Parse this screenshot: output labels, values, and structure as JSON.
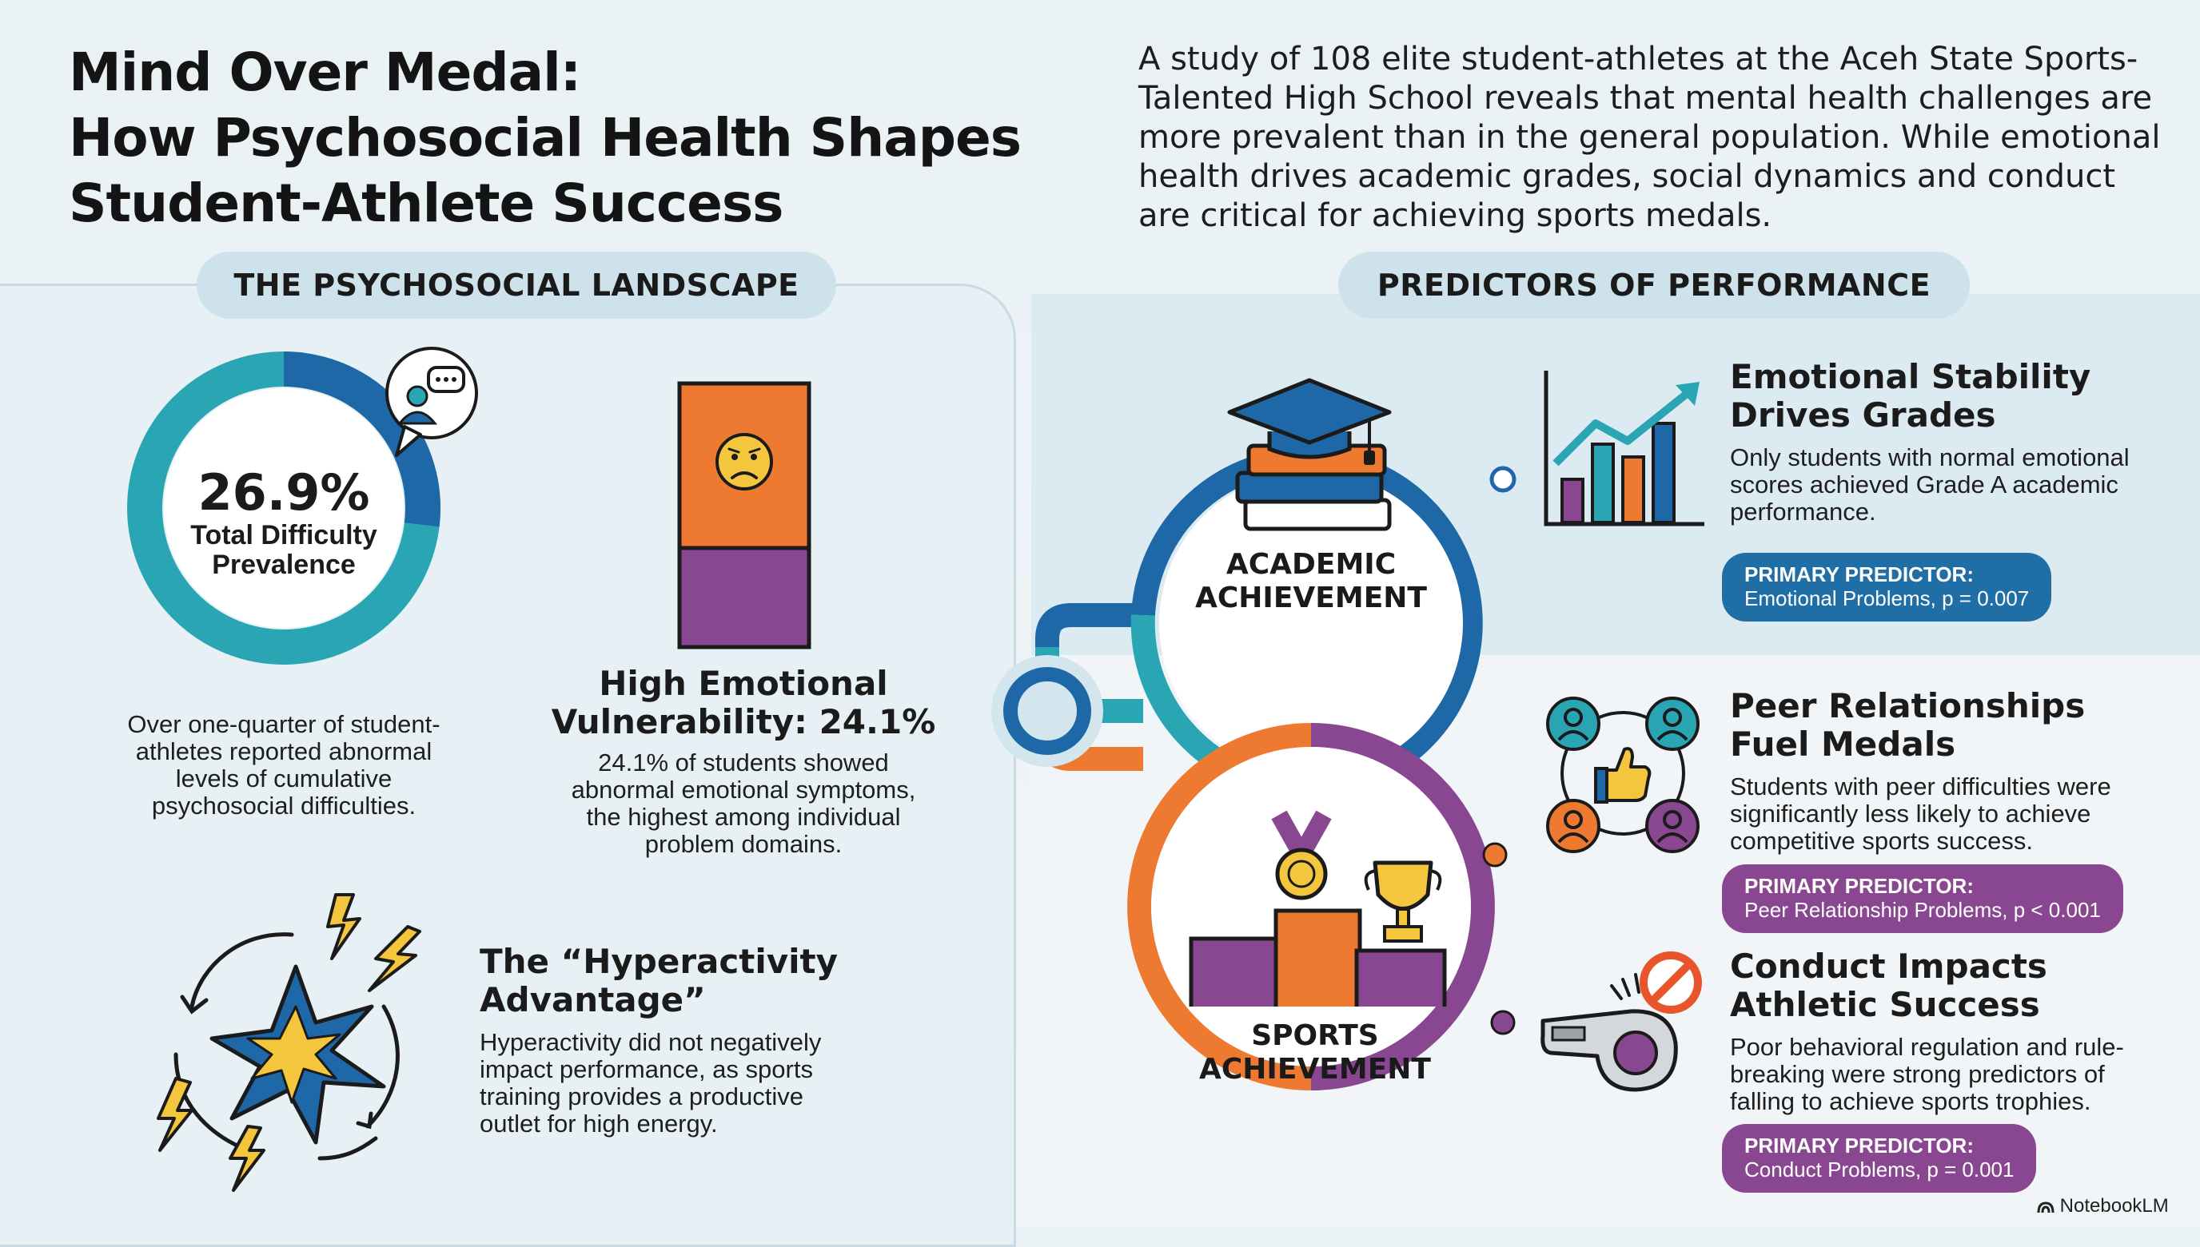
{
  "header": {
    "title_lines": [
      "Mind Over Medal:",
      "How Psychosocial Health Shapes",
      "Student-Athlete Success"
    ],
    "intro": "A study of 108 elite student-athletes at the Aceh State Sports-Talented High School reveals that mental health challenges are more prevalent than in the general population. While emotional health drives academic grades, social dynamics and conduct are critical for achieving sports medals."
  },
  "sections": {
    "left_heading": "THE PSYCHOSOCIAL LANDSCAPE",
    "right_heading": "PREDICTORS OF PERFORMANCE"
  },
  "landscape": {
    "donut": {
      "value_label": "26.9%",
      "caption_lines": [
        "Total Difficulty",
        "Prevalence"
      ],
      "percent": 26.9,
      "description": "Over one-quarter of student-athletes reported abnormal levels of cumulative psychosocial difficulties."
    },
    "vulnerability": {
      "heading_lines": [
        "High Emotional",
        "Vulnerability: 24.1%"
      ],
      "description": "24.1% of students showed abnormal emotional symptoms, the highest among individual problem domains."
    },
    "hyperactivity": {
      "heading_lines": [
        "The “Hyperactivity",
        "Advantage”"
      ],
      "description": "Hyperactivity did not negatively impact performance, as sports training provides a productive outlet for high energy."
    }
  },
  "predictors": {
    "academic_ring_label": [
      "ACADEMIC",
      "ACHIEVEMENT"
    ],
    "sports_ring_label": [
      "SPORTS",
      "ACHIEVEMENT"
    ],
    "items": [
      {
        "heading_lines": [
          "Emotional Stability",
          "Drives Grades"
        ],
        "description": "Only students with normal emotional scores achieved Grade A academic performance.",
        "badge_label": "PRIMARY PREDICTOR:",
        "badge_value": "Emotional Problems, p = 0.007"
      },
      {
        "heading_lines": [
          "Peer Relationships",
          "Fuel Medals"
        ],
        "description": "Students with peer difficulties were significantly less likely to achieve competitive sports success.",
        "badge_label": "PRIMARY PREDICTOR:",
        "badge_value": "Peer Relationship Problems, p < 0.001"
      },
      {
        "heading_lines": [
          "Conduct Impacts",
          "Athletic Success"
        ],
        "description": "Poor behavioral regulation and rule-breaking were strong predictors of falling to achieve sports trophies.",
        "badge_label": "PRIMARY PREDICTOR:",
        "badge_value": "Conduct Problems, p = 0.001"
      }
    ]
  },
  "footer": {
    "brand": "NotebookLM"
  },
  "colors": {
    "teal": "#2aa5b3",
    "navy": "#1e68a8",
    "orange": "#ee7a31",
    "purple": "#8a4791",
    "yellow": "#f4c63d",
    "badge_blue": "#1f6fa6",
    "badge_purple": "#8a4791"
  },
  "icons": [
    "speech-bubble-person-icon",
    "sad-face-icon",
    "burst-lightning-icon",
    "graduation-books-icon",
    "bar-chart-rising-icon",
    "peer-network-thumbs-up-icon",
    "podium-medal-trophy-icon",
    "whistle-no-entry-icon",
    "notebooklm-logo-icon"
  ]
}
